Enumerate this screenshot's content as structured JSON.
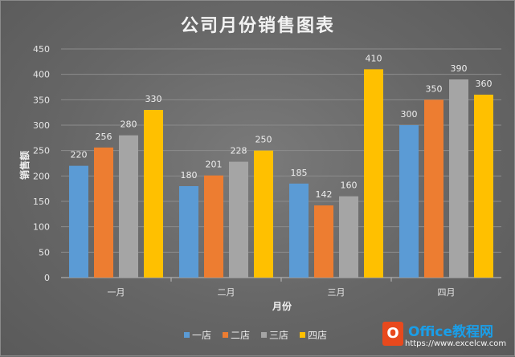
{
  "chart_data": {
    "type": "bar",
    "title": "公司月份销售图表",
    "xlabel": "月份",
    "ylabel": "销售额",
    "categories": [
      "一月",
      "二月",
      "三月",
      "四月"
    ],
    "ylim": [
      0,
      450
    ],
    "yticks": [
      0,
      50,
      100,
      150,
      200,
      250,
      300,
      350,
      400,
      450
    ],
    "grid": true,
    "legend_position": "bottom",
    "series": [
      {
        "name": "一店",
        "color": "#5b9bd5",
        "values": [
          220,
          180,
          185,
          300
        ]
      },
      {
        "name": "二店",
        "color": "#ed7d31",
        "values": [
          256,
          201,
          142,
          350
        ]
      },
      {
        "name": "三店",
        "color": "#a5a5a5",
        "values": [
          280,
          228,
          160,
          390
        ]
      },
      {
        "name": "四店",
        "color": "#ffc000",
        "values": [
          330,
          250,
          410,
          360
        ]
      }
    ]
  },
  "watermark": {
    "logo_letter": "O",
    "brand": "Office教程网",
    "url": "https://www.excelcw.com"
  }
}
